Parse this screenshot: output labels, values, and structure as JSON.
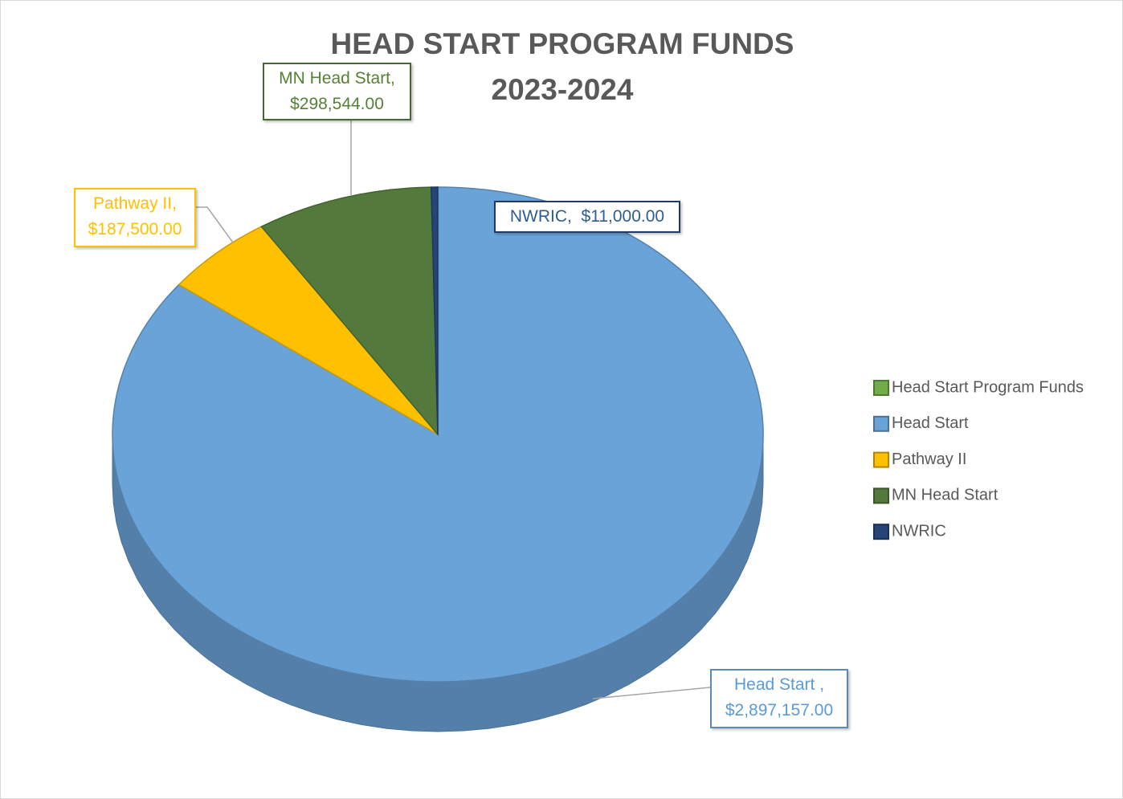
{
  "chart_data": {
    "type": "pie",
    "three_d": true,
    "title": [
      "HEAD START PROGRAM FUNDS",
      "2023-2024"
    ],
    "series_name": "Head Start Program Funds",
    "series_color": "#70ad47",
    "categories": [
      "Head Start",
      "Pathway II",
      "MN Head Start",
      "NWRIC"
    ],
    "values": [
      2897157,
      187500,
      298544,
      11000
    ],
    "value_labels": [
      "Head Start , $2,897,157.00",
      "Pathway II, $187,500.00",
      "MN Head Start, $298,544.00",
      "NWRIC,  $11,000.00"
    ],
    "colors": [
      "#6aa3d8",
      "#ffc000",
      "#537a3c",
      "#264478"
    ],
    "legend": "right"
  }
}
